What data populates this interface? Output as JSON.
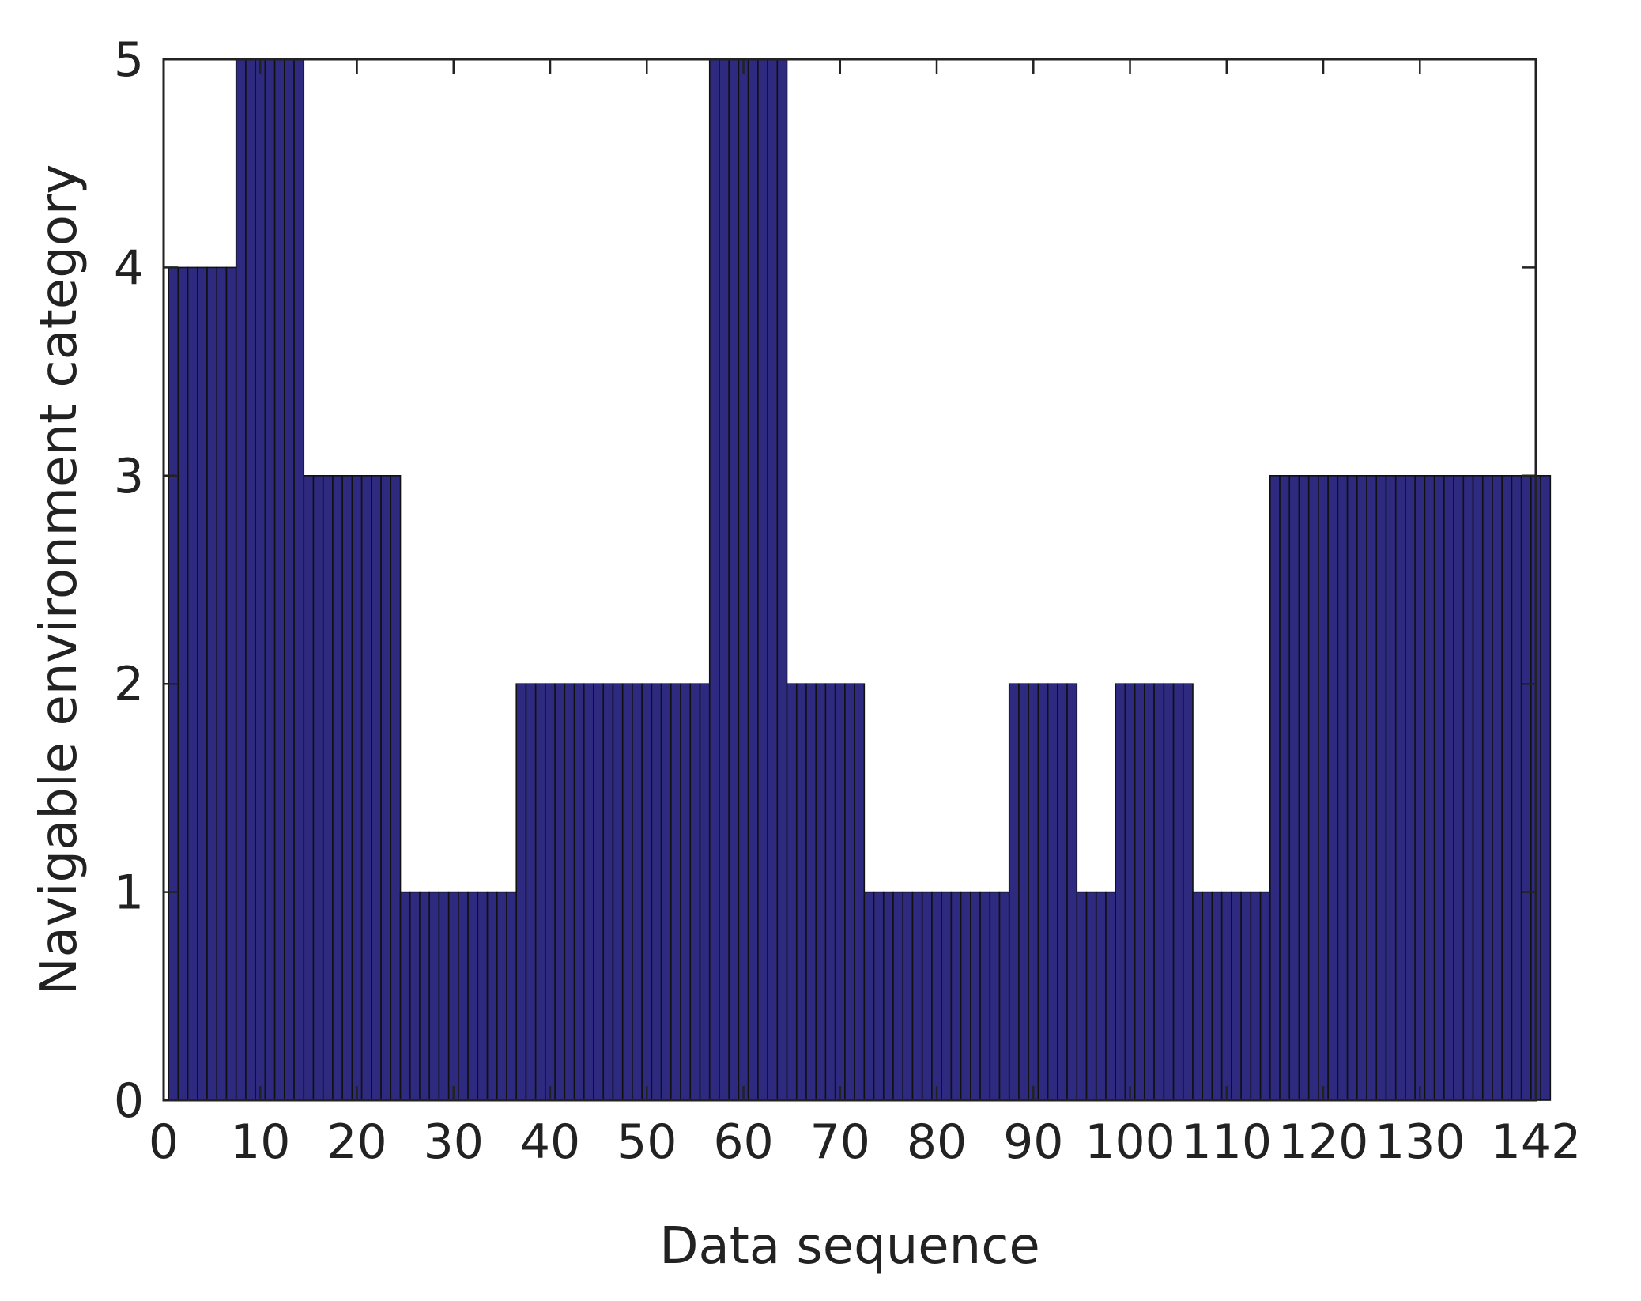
{
  "chart_data": {
    "type": "bar",
    "title": "",
    "xlabel": "Data sequence",
    "ylabel": "Navigable environment category",
    "xlim": [
      0,
      142
    ],
    "ylim": [
      0,
      5
    ],
    "xticks": [
      0,
      10,
      20,
      30,
      40,
      50,
      60,
      70,
      80,
      90,
      100,
      110,
      120,
      130,
      142
    ],
    "yticks": [
      0,
      1,
      2,
      3,
      4,
      5
    ],
    "grid": false,
    "legend": "none",
    "bar_color": "#2e2a80",
    "edge_color": "#111111",
    "bar_width": 1,
    "bar_start": 1,
    "values": [
      4,
      4,
      4,
      4,
      4,
      4,
      4,
      5,
      5,
      5,
      5,
      5,
      5,
      5,
      3,
      3,
      3,
      3,
      3,
      3,
      3,
      3,
      3,
      3,
      1,
      1,
      1,
      1,
      1,
      1,
      1,
      1,
      1,
      1,
      1,
      1,
      2,
      2,
      2,
      2,
      2,
      2,
      2,
      2,
      2,
      2,
      2,
      2,
      2,
      2,
      2,
      2,
      2,
      2,
      2,
      2,
      5,
      5,
      5,
      5,
      5,
      5,
      5,
      5,
      2,
      2,
      2,
      2,
      2,
      2,
      2,
      2,
      1,
      1,
      1,
      1,
      1,
      1,
      1,
      1,
      1,
      1,
      1,
      1,
      1,
      1,
      1,
      2,
      2,
      2,
      2,
      2,
      2,
      2,
      1,
      1,
      1,
      1,
      2,
      2,
      2,
      2,
      2,
      2,
      2,
      2,
      1,
      1,
      1,
      1,
      1,
      1,
      1,
      1,
      3,
      3,
      3,
      3,
      3,
      3,
      3,
      3,
      3,
      3,
      3,
      3,
      3,
      3,
      3,
      3,
      3,
      3,
      3,
      3,
      3,
      3,
      3,
      3,
      3,
      3,
      3,
      3,
      3
    ]
  }
}
